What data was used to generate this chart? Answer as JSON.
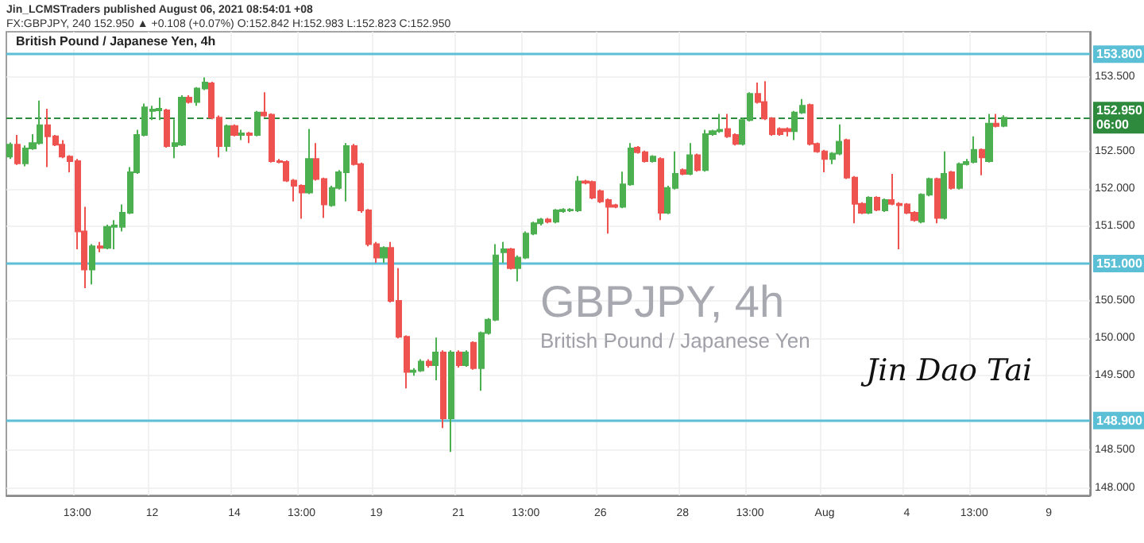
{
  "chart_data": {
    "type": "candlestick",
    "title": "British Pound / Japanese Yen, 4h",
    "annotations": [
      "Jin_LCMSTraders published August 06, 2021 08:54:01 +08",
      "FX:GBPJPY, 240 152.950 ▲ +0.108 (+0.07%) O:152.842 H:152.983 L:152.823 C:152.950",
      "GBPJPY, 4h",
      "British Pound / Japanese Yen",
      "Jin Dao Tai"
    ],
    "categories": [
      null,
      null,
      null,
      null,
      null,
      null,
      null,
      null,
      null,
      "13:00",
      null,
      null,
      null,
      null,
      null,
      null,
      null,
      null,
      null,
      "12",
      null,
      null,
      null,
      null,
      null,
      null,
      null,
      null,
      null,
      null,
      "14",
      null,
      null,
      null,
      null,
      null,
      null,
      null,
      null,
      "13:00",
      null,
      null,
      null,
      null,
      null,
      null,
      null,
      null,
      null,
      "19",
      null,
      null,
      null,
      null,
      null,
      null,
      null,
      null,
      null,
      null,
      "21",
      null,
      null,
      null,
      null,
      null,
      null,
      null,
      null,
      "13:00",
      null,
      null,
      null,
      null,
      null,
      null,
      null,
      null,
      null,
      "26",
      null,
      null,
      null,
      null,
      null,
      null,
      null,
      null,
      null,
      null,
      "28",
      null,
      null,
      null,
      null,
      null,
      null,
      null,
      null,
      "13:00",
      null,
      null,
      null,
      null,
      null,
      null,
      null,
      null,
      null,
      "Aug",
      null,
      null,
      null,
      null,
      null,
      null,
      null,
      null,
      null,
      null,
      "4",
      null,
      null,
      null,
      null,
      null,
      null,
      null,
      null,
      "13:00",
      null,
      null,
      null,
      null,
      null,
      null,
      null,
      null,
      null,
      "9",
      null,
      null,
      null,
      null,
      null
    ],
    "ohlc": [
      [
        152.43,
        152.62,
        152.4,
        152.59
      ],
      [
        152.59,
        152.72,
        152.32,
        152.34
      ],
      [
        152.34,
        152.58,
        152.3,
        152.54
      ],
      [
        152.54,
        152.73,
        152.52,
        152.61
      ],
      [
        152.61,
        153.18,
        152.59,
        152.85
      ],
      [
        152.85,
        153.07,
        152.29,
        152.7
      ],
      [
        152.7,
        152.72,
        152.57,
        152.59
      ],
      [
        152.59,
        152.65,
        152.41,
        152.43
      ],
      [
        152.43,
        152.45,
        152.22,
        152.37
      ],
      [
        152.37,
        152.4,
        151.19,
        151.43
      ],
      [
        151.43,
        151.76,
        150.67,
        150.92
      ],
      [
        150.92,
        151.26,
        150.72,
        151.23
      ],
      [
        151.23,
        151.29,
        151.15,
        151.21
      ],
      [
        151.21,
        151.52,
        151.19,
        151.49
      ],
      [
        151.49,
        151.58,
        151.19,
        151.51
      ],
      [
        151.49,
        151.79,
        151.43,
        151.68
      ],
      [
        151.68,
        152.29,
        151.66,
        152.22
      ],
      [
        152.22,
        152.79,
        152.2,
        152.72
      ],
      [
        152.72,
        153.14,
        152.7,
        153.09
      ],
      [
        153.04,
        153.11,
        152.92,
        153.06
      ],
      [
        153.05,
        153.22,
        152.92,
        153.07
      ],
      [
        153.05,
        153.07,
        152.55,
        152.57
      ],
      [
        152.57,
        152.93,
        152.41,
        152.61
      ],
      [
        152.59,
        153.25,
        152.57,
        153.22
      ],
      [
        153.22,
        153.25,
        153.14,
        153.16
      ],
      [
        153.16,
        153.36,
        153.11,
        153.34
      ],
      [
        153.34,
        153.49,
        153.32,
        153.42
      ],
      [
        153.41,
        153.43,
        152.93,
        152.95
      ],
      [
        152.95,
        152.98,
        152.42,
        152.57
      ],
      [
        152.57,
        152.86,
        152.5,
        152.84
      ],
      [
        152.84,
        152.86,
        152.7,
        152.72
      ],
      [
        152.72,
        152.79,
        152.65,
        152.74
      ],
      [
        152.74,
        152.76,
        152.61,
        152.72
      ],
      [
        152.72,
        153.04,
        152.7,
        153.02
      ],
      [
        153.02,
        153.29,
        152.96,
        152.98
      ],
      [
        152.99,
        153.01,
        152.35,
        152.37
      ],
      [
        152.37,
        152.4,
        152.34,
        152.36
      ],
      [
        152.36,
        152.38,
        152.09,
        152.11
      ],
      [
        152.11,
        152.13,
        151.83,
        152.04
      ],
      [
        152.04,
        152.06,
        151.6,
        151.95
      ],
      [
        151.95,
        152.8,
        151.93,
        152.4
      ],
      [
        152.4,
        152.61,
        152.11,
        152.13
      ],
      [
        152.13,
        152.15,
        151.61,
        151.79
      ],
      [
        151.78,
        152.04,
        151.76,
        152.01
      ],
      [
        152.01,
        152.25,
        151.99,
        152.22
      ],
      [
        152.22,
        152.61,
        151.83,
        152.57
      ],
      [
        152.57,
        152.6,
        152.31,
        152.33
      ],
      [
        152.33,
        152.35,
        151.68,
        151.71
      ],
      [
        151.71,
        151.73,
        151.23,
        151.26
      ],
      [
        151.26,
        151.29,
        151.01,
        151.08
      ],
      [
        151.08,
        151.23,
        151.01,
        151.21
      ],
      [
        151.21,
        151.29,
        150.48,
        150.5
      ],
      [
        150.5,
        150.94,
        150.0,
        150.02
      ],
      [
        150.02,
        150.04,
        149.33,
        149.55
      ],
      [
        149.55,
        149.6,
        149.5,
        149.57
      ],
      [
        149.57,
        149.72,
        149.55,
        149.69
      ],
      [
        149.69,
        149.72,
        149.61,
        149.64
      ],
      [
        149.64,
        150.01,
        149.44,
        149.81
      ],
      [
        149.81,
        149.84,
        148.8,
        148.93
      ],
      [
        148.93,
        149.84,
        148.48,
        149.81
      ],
      [
        149.81,
        149.84,
        149.61,
        149.64
      ],
      [
        149.64,
        149.84,
        149.62,
        149.81
      ],
      [
        149.94,
        149.96,
        149.58,
        149.6
      ],
      [
        149.6,
        150.09,
        149.3,
        150.07
      ],
      [
        150.07,
        150.27,
        150.05,
        150.25
      ],
      [
        150.25,
        151.26,
        150.23,
        151.11
      ],
      [
        151.15,
        151.29,
        151.01,
        151.19
      ],
      [
        151.19,
        151.21,
        150.92,
        150.94
      ],
      [
        150.94,
        151.11,
        150.76,
        151.08
      ],
      [
        151.08,
        151.43,
        151.06,
        151.4
      ],
      [
        151.4,
        151.56,
        151.38,
        151.54
      ],
      [
        151.54,
        151.61,
        151.51,
        151.59
      ],
      [
        151.59,
        151.61,
        151.54,
        151.56
      ],
      [
        151.56,
        151.73,
        151.54,
        151.71
      ],
      [
        151.7,
        151.74,
        151.68,
        151.72
      ],
      [
        151.71,
        151.74,
        151.69,
        151.72
      ],
      [
        151.71,
        152.17,
        151.69,
        152.1
      ],
      [
        152.1,
        152.12,
        152.06,
        152.08
      ],
      [
        152.09,
        152.11,
        151.86,
        151.88
      ],
      [
        151.97,
        151.99,
        151.81,
        151.83
      ],
      [
        151.85,
        151.87,
        151.4,
        151.76
      ],
      [
        151.78,
        151.8,
        151.74,
        151.76
      ],
      [
        151.76,
        152.23,
        151.74,
        152.06
      ],
      [
        152.06,
        152.61,
        152.04,
        152.54
      ],
      [
        152.55,
        152.57,
        152.47,
        152.49
      ],
      [
        152.49,
        152.51,
        152.35,
        152.37
      ],
      [
        152.37,
        152.45,
        152.35,
        152.43
      ],
      [
        152.4,
        152.42,
        151.58,
        151.68
      ],
      [
        151.68,
        152.04,
        151.66,
        152.01
      ],
      [
        152.01,
        152.5,
        151.99,
        152.2
      ],
      [
        152.25,
        152.27,
        152.18,
        152.2
      ],
      [
        152.2,
        152.61,
        152.18,
        152.45
      ],
      [
        152.45,
        152.47,
        152.23,
        152.25
      ],
      [
        152.25,
        152.79,
        152.23,
        152.73
      ],
      [
        152.73,
        152.79,
        152.71,
        152.77
      ],
      [
        152.77,
        153.0,
        152.75,
        152.79
      ],
      [
        152.8,
        153.0,
        152.68,
        152.7
      ],
      [
        152.72,
        152.74,
        152.58,
        152.6
      ],
      [
        152.6,
        152.95,
        152.58,
        152.92
      ],
      [
        152.92,
        153.29,
        152.9,
        153.27
      ],
      [
        153.27,
        153.42,
        153.14,
        153.16
      ],
      [
        153.16,
        153.44,
        152.92,
        152.94
      ],
      [
        152.94,
        152.96,
        152.71,
        152.73
      ],
      [
        152.8,
        152.82,
        152.71,
        152.73
      ],
      [
        152.8,
        152.82,
        152.7,
        152.77
      ],
      [
        152.77,
        153.04,
        152.65,
        153.02
      ],
      [
        153.02,
        153.2,
        153.0,
        153.11
      ],
      [
        153.12,
        153.14,
        152.58,
        152.6
      ],
      [
        152.6,
        152.62,
        152.48,
        152.5
      ],
      [
        152.5,
        152.52,
        152.22,
        152.4
      ],
      [
        152.4,
        152.49,
        152.33,
        152.47
      ],
      [
        152.47,
        152.86,
        152.45,
        152.63
      ],
      [
        152.65,
        152.67,
        152.13,
        152.15
      ],
      [
        152.15,
        152.17,
        151.54,
        151.8
      ],
      [
        151.8,
        151.82,
        151.66,
        151.68
      ],
      [
        151.68,
        151.9,
        151.66,
        151.88
      ],
      [
        151.88,
        151.9,
        151.7,
        151.72
      ],
      [
        151.71,
        151.87,
        151.69,
        151.85
      ],
      [
        151.85,
        152.2,
        151.78,
        151.8
      ],
      [
        151.8,
        151.82,
        151.19,
        151.78
      ],
      [
        151.79,
        151.81,
        151.66,
        151.68
      ],
      [
        151.68,
        151.7,
        151.56,
        151.58
      ],
      [
        151.56,
        151.94,
        151.54,
        151.92
      ],
      [
        151.92,
        152.15,
        151.9,
        152.13
      ],
      [
        152.13,
        152.15,
        151.54,
        151.61
      ],
      [
        151.61,
        152.5,
        151.59,
        152.2
      ],
      [
        152.22,
        152.24,
        151.99,
        152.01
      ],
      [
        152.01,
        152.35,
        151.99,
        152.33
      ],
      [
        152.33,
        152.4,
        152.31,
        152.36
      ],
      [
        152.36,
        152.7,
        152.34,
        152.52
      ],
      [
        152.52,
        152.54,
        152.18,
        152.42
      ],
      [
        152.37,
        153.0,
        152.35,
        152.87
      ],
      [
        152.87,
        153.0,
        152.82,
        152.84
      ],
      [
        152.842,
        152.983,
        152.823,
        152.95
      ],
      null,
      null,
      null,
      null,
      null,
      null,
      null,
      null,
      null,
      null,
      null
    ],
    "colors": [
      "#4caf50",
      "#ef5350",
      "#4caf50",
      "#4caf50",
      "#4caf50",
      "#ef5350",
      "#ef5350",
      "#ef5350",
      "#ef5350",
      "#ef5350",
      "#ef5350",
      "#4caf50",
      "#ef5350",
      "#4caf50",
      "#4caf50",
      "#4caf50",
      "#4caf50",
      "#4caf50",
      "#4caf50",
      "#4caf50",
      "#4caf50",
      "#ef5350",
      "#4caf50",
      "#4caf50",
      "#ef5350",
      "#4caf50",
      "#4caf50",
      "#ef5350",
      "#ef5350",
      "#4caf50",
      "#ef5350",
      "#4caf50",
      "#ef5350",
      "#4caf50",
      "#ef5350",
      "#ef5350",
      "#ef5350",
      "#ef5350",
      "#ef5350",
      "#ef5350",
      "#4caf50",
      "#ef5350",
      "#ef5350",
      "#4caf50",
      "#4caf50",
      "#4caf50",
      "#ef5350",
      "#ef5350",
      "#ef5350",
      "#ef5350",
      "#4caf50",
      "#ef5350",
      "#ef5350",
      "#ef5350",
      "#4caf50",
      "#4caf50",
      "#ef5350",
      "#4caf50",
      "#ef5350",
      "#4caf50",
      "#ef5350",
      "#4caf50",
      "#ef5350",
      "#4caf50",
      "#4caf50",
      "#4caf50",
      "#4caf50",
      "#ef5350",
      "#4caf50",
      "#4caf50",
      "#4caf50",
      "#4caf50",
      "#ef5350",
      "#4caf50",
      "#4caf50",
      "#4caf50",
      "#4caf50",
      "#ef5350",
      "#ef5350",
      "#ef5350",
      "#ef5350",
      "#ef5350",
      "#4caf50",
      "#4caf50",
      "#ef5350",
      "#ef5350",
      "#4caf50",
      "#ef5350",
      "#4caf50",
      "#4caf50",
      "#ef5350",
      "#4caf50",
      "#ef5350",
      "#4caf50",
      "#4caf50",
      "#4caf50",
      "#ef5350",
      "#ef5350",
      "#4caf50",
      "#4caf50",
      "#ef5350",
      "#ef5350",
      "#ef5350",
      "#ef5350",
      "#ef5350",
      "#4caf50",
      "#4caf50",
      "#ef5350",
      "#ef5350",
      "#ef5350",
      "#4caf50",
      "#4caf50",
      "#ef5350",
      "#ef5350",
      "#ef5350",
      "#4caf50",
      "#ef5350",
      "#4caf50",
      "#ef5350",
      "#ef5350",
      "#ef5350",
      "#ef5350",
      "#4caf50",
      "#4caf50",
      "#ef5350",
      "#4caf50",
      "#ef5350",
      "#4caf50",
      "#4caf50",
      "#4caf50",
      "#ef5350",
      "#4caf50",
      "#ef5350",
      "#4caf50",
      null,
      null,
      null,
      null,
      null,
      null,
      null,
      null,
      null,
      null,
      null
    ],
    "ylim": [
      147.9,
      154.1
    ],
    "yticks": [
      {
        "value": 148,
        "label": "148.000"
      },
      {
        "value": 148.5,
        "label": "148.500"
      },
      {
        "value": 149.5,
        "label": "149.500"
      },
      {
        "value": 150,
        "label": "150.000"
      },
      {
        "value": 150.5,
        "label": "150.500"
      },
      {
        "value": 151.5,
        "label": "151.500"
      },
      {
        "value": 152,
        "label": "152.000"
      },
      {
        "value": 152.5,
        "label": "152.500"
      },
      {
        "value": 153.5,
        "label": "153.500"
      }
    ],
    "ref_lines": [
      {
        "axis": "y",
        "value": 153.8,
        "label": "153.800",
        "color": "#5bc0d6"
      },
      {
        "axis": "y",
        "value": 151,
        "label": "151.000",
        "color": "#5bc0d6"
      },
      {
        "axis": "y",
        "value": 148.9,
        "label": "148.900",
        "color": "#5bc0d6"
      },
      {
        "axis": "y",
        "value": 152.95,
        "label": "152.950\n06:00",
        "color": "#2e8b3e",
        "line_style": "dashed"
      }
    ],
    "grid": true
  }
}
